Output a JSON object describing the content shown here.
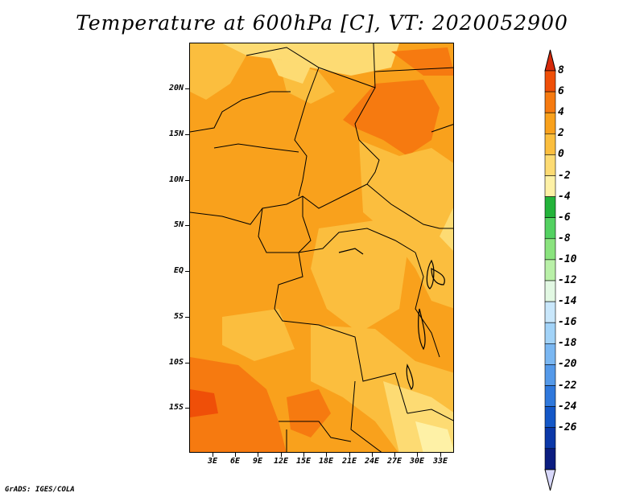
{
  "title": "Temperature at 600hPa [C], VT: 2020052900",
  "credit": "GrADS: IGES/COLA",
  "lat_labels": [
    "20N",
    "15N",
    "10N",
    "5N",
    "EQ",
    "5S",
    "10S",
    "15S"
  ],
  "lon_labels": [
    "3E",
    "6E",
    "9E",
    "12E",
    "15E",
    "18E",
    "21E",
    "24E",
    "27E",
    "30E",
    "33E"
  ],
  "colorbar": {
    "labels": [
      "8",
      "6",
      "4",
      "2",
      "0",
      "-2",
      "-4",
      "-6",
      "-8",
      "-10",
      "-12",
      "-14",
      "-16",
      "-18",
      "-20",
      "-22",
      "-24",
      "-26"
    ],
    "colors": [
      "#d62a0b",
      "#ef4f08",
      "#f67a10",
      "#f9a11c",
      "#fbbe3e",
      "#fddb73",
      "#fef1a6",
      "#23b33a",
      "#53d161",
      "#8ae37e",
      "#b9f0a8",
      "#e2f8e3",
      "#c9e7fb",
      "#a2d3f8",
      "#7ab7f2",
      "#5499e9",
      "#2f78dc",
      "#1457c7",
      "#0b38a8",
      "#0b1d80",
      "#d8d8fa"
    ]
  },
  "map_fill": {
    "base": "#f9a11c",
    "warm": "#f67a10",
    "mild": "#fbbe3e",
    "cool": "#fddb73",
    "coolest": "#fef1a6"
  }
}
